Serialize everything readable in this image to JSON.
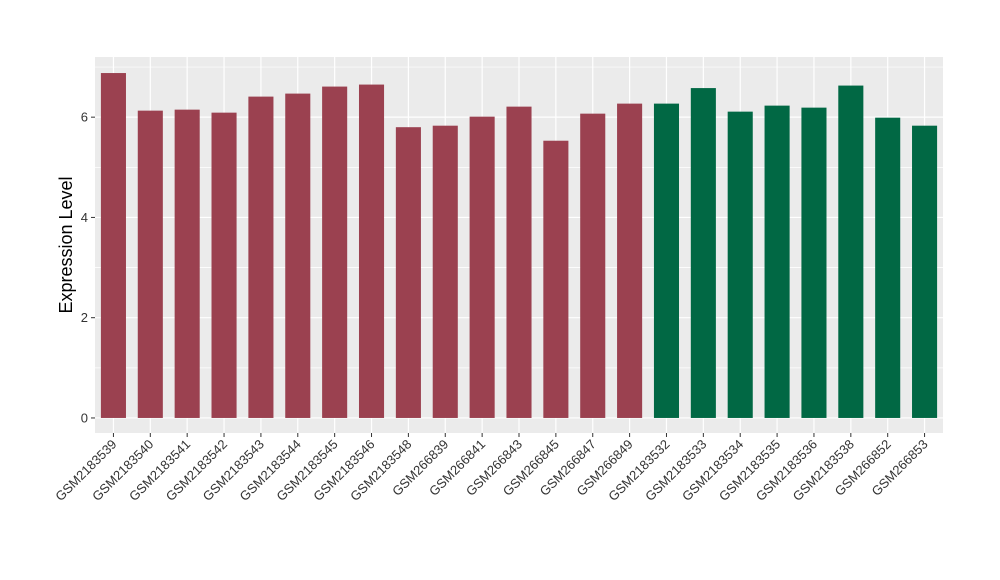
{
  "chart_data": {
    "type": "bar",
    "title": "",
    "xlabel": "",
    "ylabel": "Expression Level",
    "ylim": [
      -0.3,
      7.2
    ],
    "yticks": [
      0,
      2,
      4,
      6
    ],
    "grid": true,
    "legend": "none",
    "categories": [
      "GSM2183539",
      "GSM2183540",
      "GSM2183541",
      "GSM2183542",
      "GSM2183543",
      "GSM2183544",
      "GSM2183545",
      "GSM2183546",
      "GSM2183548",
      "GSM266839",
      "GSM266841",
      "GSM266843",
      "GSM266845",
      "GSM266847",
      "GSM266849",
      "GSM2183532",
      "GSM2183533",
      "GSM2183534",
      "GSM2183535",
      "GSM2183536",
      "GSM2183538",
      "GSM266852",
      "GSM266853"
    ],
    "values": [
      6.88,
      6.13,
      6.15,
      6.09,
      6.41,
      6.47,
      6.61,
      6.65,
      5.8,
      5.83,
      6.01,
      6.21,
      5.53,
      6.07,
      6.27,
      6.27,
      6.58,
      6.11,
      6.23,
      6.19,
      6.63,
      5.99,
      5.83
    ],
    "group_colors": {
      "red": "#9b4150",
      "green": "#016844"
    },
    "bar_groups": [
      "red",
      "red",
      "red",
      "red",
      "red",
      "red",
      "red",
      "red",
      "red",
      "red",
      "red",
      "red",
      "red",
      "red",
      "red",
      "green",
      "green",
      "green",
      "green",
      "green",
      "green",
      "green",
      "green"
    ],
    "panel_background": "#ebebeb",
    "grid_color": "#ffffff"
  }
}
